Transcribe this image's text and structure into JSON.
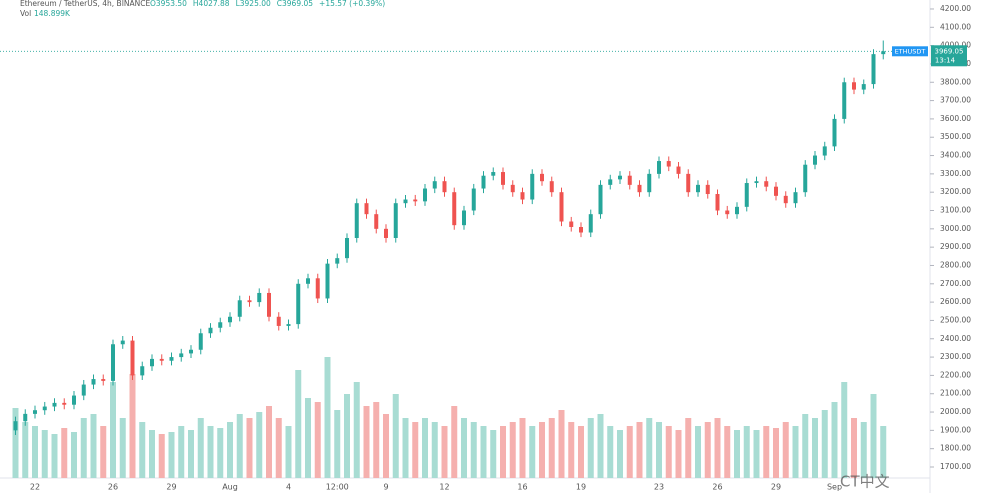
{
  "chart_data": {
    "type": "candlestick",
    "title": "Ethereum / TetherUS, 4h, BINANCE",
    "ohlc_labels": [
      "O3953.50",
      "H4027.88",
      "L3925.00",
      "C3969.05",
      "+15.57 (+0.39%)"
    ],
    "volume_label": "Vol",
    "volume_value_label": "148.899K",
    "symbol": "ETHUSDT",
    "last_price_label": "3969.05",
    "countdown": "13:14",
    "watermark": "CT中文",
    "up_color": "#26a69a",
    "down_color": "#ef5350",
    "volume_up_color": "#a8dcd3",
    "volume_down_color": "#f5b0ae",
    "grid": false,
    "categories": [
      null,
      null,
      "22",
      null,
      null,
      null,
      null,
      null,
      null,
      null,
      "26",
      null,
      null,
      null,
      null,
      null,
      "29",
      null,
      null,
      null,
      null,
      null,
      "Aug",
      null,
      null,
      null,
      null,
      null,
      "4",
      null,
      null,
      null,
      null,
      "12:00",
      null,
      null,
      null,
      null,
      "9",
      null,
      null,
      null,
      null,
      null,
      "12",
      null,
      null,
      null,
      null,
      null,
      null,
      null,
      "16",
      null,
      null,
      null,
      null,
      null,
      "19",
      null,
      null,
      null,
      null,
      null,
      null,
      null,
      "23",
      null,
      null,
      null,
      null,
      null,
      "26",
      null,
      null,
      null,
      null,
      null,
      "29",
      null,
      null,
      null,
      null,
      null,
      "Sep",
      null,
      null,
      null,
      null,
      null
    ],
    "open": [
      1900,
      1950,
      1990,
      2010,
      2030,
      2050,
      2040,
      2090,
      2150,
      2180,
      2170,
      2370,
      2390,
      2200,
      2250,
      2290,
      2280,
      2300,
      2320,
      2340,
      2430,
      2460,
      2490,
      2520,
      2610,
      2600,
      2650,
      2520,
      2470,
      2480,
      2700,
      2730,
      2620,
      2810,
      2840,
      2950,
      3140,
      3080,
      3000,
      2950,
      3140,
      3160,
      3150,
      3220,
      3260,
      3200,
      3020,
      3100,
      3220,
      3290,
      3310,
      3240,
      3200,
      3160,
      3300,
      3260,
      3200,
      3040,
      3010,
      2980,
      3080,
      3240,
      3270,
      3290,
      3240,
      3200,
      3300,
      3370,
      3340,
      3300,
      3200,
      3240,
      3190,
      3100,
      3080,
      3120,
      3250,
      3260,
      3230,
      3180,
      3140,
      3200,
      3350,
      3400,
      3450,
      3600,
      3800,
      3760,
      3790,
      3953.5
    ],
    "high": [
      1975,
      2015,
      2035,
      2055,
      2075,
      2075,
      2115,
      2175,
      2205,
      2205,
      2395,
      2415,
      2415,
      2275,
      2315,
      2315,
      2325,
      2345,
      2365,
      2455,
      2485,
      2515,
      2545,
      2635,
      2635,
      2675,
      2675,
      2545,
      2505,
      2725,
      2755,
      2755,
      2835,
      2865,
      2975,
      3165,
      3165,
      3105,
      3025,
      3165,
      3185,
      3185,
      3245,
      3285,
      3285,
      3225,
      3125,
      3245,
      3315,
      3335,
      3335,
      3265,
      3225,
      3325,
      3325,
      3285,
      3225,
      3065,
      3035,
      3105,
      3265,
      3295,
      3315,
      3315,
      3265,
      3325,
      3395,
      3395,
      3365,
      3325,
      3265,
      3265,
      3215,
      3125,
      3145,
      3275,
      3285,
      3285,
      3255,
      3205,
      3225,
      3375,
      3425,
      3475,
      3625,
      3825,
      3825,
      3815,
      3980,
      4027.88
    ],
    "low": [
      1875,
      1925,
      1965,
      1985,
      2005,
      2015,
      2015,
      2065,
      2125,
      2145,
      2145,
      2345,
      2175,
      2175,
      2225,
      2255,
      2255,
      2275,
      2295,
      2315,
      2405,
      2435,
      2465,
      2495,
      2575,
      2575,
      2495,
      2445,
      2445,
      2455,
      2675,
      2595,
      2595,
      2785,
      2815,
      2925,
      3055,
      2975,
      2925,
      2925,
      3115,
      3125,
      3125,
      3195,
      3175,
      2995,
      2995,
      3075,
      3195,
      3265,
      3215,
      3175,
      3135,
      3135,
      3235,
      3175,
      3015,
      2985,
      2955,
      2955,
      3055,
      3215,
      3245,
      3215,
      3175,
      3175,
      3275,
      3315,
      3275,
      3175,
      3175,
      3165,
      3075,
      3055,
      3055,
      3095,
      3225,
      3205,
      3155,
      3115,
      3115,
      3175,
      3325,
      3375,
      3425,
      3575,
      3735,
      3735,
      3765,
      3925
    ],
    "close": [
      1950,
      1990,
      2010,
      2030,
      2050,
      2040,
      2090,
      2150,
      2180,
      2170,
      2370,
      2390,
      2200,
      2250,
      2290,
      2280,
      2300,
      2320,
      2340,
      2430,
      2460,
      2490,
      2520,
      2610,
      2600,
      2650,
      2520,
      2470,
      2480,
      2700,
      2730,
      2620,
      2810,
      2840,
      2950,
      3140,
      3080,
      3000,
      2950,
      3140,
      3160,
      3150,
      3220,
      3260,
      3200,
      3020,
      3100,
      3220,
      3290,
      3310,
      3240,
      3200,
      3160,
      3300,
      3260,
      3200,
      3040,
      3010,
      2980,
      3080,
      3240,
      3270,
      3290,
      3240,
      3200,
      3300,
      3370,
      3340,
      3300,
      3200,
      3240,
      3190,
      3100,
      3080,
      3120,
      3250,
      3260,
      3230,
      3180,
      3140,
      3200,
      3350,
      3400,
      3450,
      3600,
      3800,
      3760,
      3790,
      3953.5,
      3969.05
    ],
    "volume": [
      350,
      280,
      260,
      240,
      220,
      250,
      230,
      300,
      320,
      260,
      480,
      300,
      520,
      280,
      240,
      220,
      230,
      260,
      240,
      300,
      260,
      250,
      280,
      320,
      300,
      330,
      360,
      300,
      260,
      540,
      400,
      380,
      605,
      340,
      420,
      480,
      360,
      380,
      320,
      420,
      300,
      280,
      300,
      280,
      260,
      360,
      300,
      280,
      260,
      240,
      260,
      280,
      300,
      260,
      280,
      300,
      340,
      280,
      260,
      300,
      320,
      260,
      240,
      260,
      280,
      300,
      280,
      260,
      240,
      300,
      260,
      280,
      300,
      260,
      240,
      260,
      240,
      260,
      250,
      280,
      260,
      320,
      300,
      340,
      380,
      480,
      300,
      280,
      420,
      260
    ],
    "vlim": [
      0,
      1000
    ],
    "ylim": [
      1640,
      4249
    ],
    "yticks": [
      {
        "value": 1700,
        "label": "1700.00"
      },
      {
        "value": 1800,
        "label": "1800.00"
      },
      {
        "value": 1900,
        "label": "1900.00"
      },
      {
        "value": 2000,
        "label": "2000.00"
      },
      {
        "value": 2100,
        "label": "2100.00"
      },
      {
        "value": 2200,
        "label": "2200.00"
      },
      {
        "value": 2300,
        "label": "2300.00"
      },
      {
        "value": 2400,
        "label": "2400.00"
      },
      {
        "value": 2500,
        "label": "2500.00"
      },
      {
        "value": 2600,
        "label": "2600.00"
      },
      {
        "value": 2700,
        "label": "2700.00"
      },
      {
        "value": 2800,
        "label": "2800.00"
      },
      {
        "value": 2900,
        "label": "2900.00"
      },
      {
        "value": 3000,
        "label": "3000.00"
      },
      {
        "value": 3100,
        "label": "3100.00"
      },
      {
        "value": 3200,
        "label": "3200.00"
      },
      {
        "value": 3300,
        "label": "3300.00"
      },
      {
        "value": 3400,
        "label": "3400.00"
      },
      {
        "value": 3500,
        "label": "3500.00"
      },
      {
        "value": 3600,
        "label": "3600.00"
      },
      {
        "value": 3700,
        "label": "3700.00"
      },
      {
        "value": 3800,
        "label": "3800.00"
      },
      {
        "value": 3900,
        "label": "3900.00"
      },
      {
        "value": 4000,
        "label": "4000.00"
      },
      {
        "value": 4100,
        "label": "4100.00"
      },
      {
        "value": 4200,
        "label": "4200.00"
      }
    ]
  }
}
